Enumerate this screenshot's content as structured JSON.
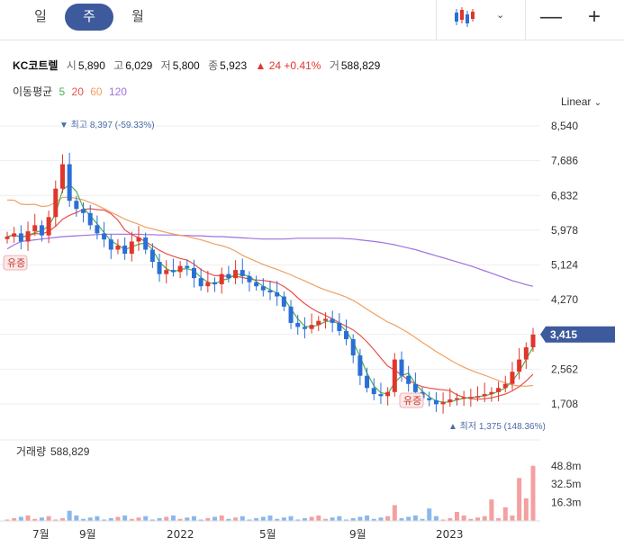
{
  "tabs": [
    {
      "label": "일",
      "active": false
    },
    {
      "label": "주",
      "active": true
    },
    {
      "label": "월",
      "active": false
    }
  ],
  "toolbar": {
    "chart_type_icon": "candlestick-icon",
    "dropdown_icon": "chevron-down-icon",
    "zoom_out": "—",
    "zoom_in": "+"
  },
  "quote": {
    "name": "KC코트렐",
    "open_label": "시",
    "open": "5,890",
    "high_label": "고",
    "high": "6,029",
    "low_label": "저",
    "low": "5,800",
    "close_label": "종",
    "close": "5,923",
    "change_arrow": "▲",
    "change": "24",
    "change_pct": "+0.41%",
    "volume_label": "거",
    "volume": "588,829"
  },
  "ma_legend": {
    "label": "이동평균",
    "items": [
      {
        "period": "5",
        "color": "#4caf50"
      },
      {
        "period": "20",
        "color": "#e8504a"
      },
      {
        "period": "60",
        "color": "#f0a060"
      },
      {
        "period": "120",
        "color": "#a070e0"
      }
    ]
  },
  "scale_mode": "Linear",
  "colors": {
    "up": "#e0362c",
    "down": "#2a6fd6",
    "accent": "#3d5a9c"
  },
  "chart_data": {
    "type": "candlestick",
    "y_ticks": [
      "8,540",
      "7,686",
      "6,832",
      "5,978",
      "5,124",
      "4,270",
      "2,562",
      "1,708"
    ],
    "y_tick_values": [
      8540,
      7686,
      6832,
      5978,
      5124,
      4270,
      2562,
      1708
    ],
    "ylim": [
      1450,
      8750
    ],
    "current_price_label": "3,415",
    "current_price": 3415,
    "high_annotation": "▼ 최고 8,397 (-59.33%)",
    "low_annotation": "▲ 최저 1,375 (148.36%)",
    "badges": [
      "유증",
      "유증"
    ],
    "x_labels": [
      "7월",
      "9월",
      "2022",
      "5월",
      "9월",
      "2023"
    ],
    "volume_panel": {
      "title": "거래량",
      "value": "588,829",
      "y_ticks": [
        "48.8m",
        "32.5m",
        "16.3m"
      ],
      "y_tick_values": [
        48.8,
        32.5,
        16.3
      ]
    },
    "close_series": [
      5820,
      5900,
      5700,
      5950,
      6100,
      5850,
      6300,
      7000,
      7600,
      6700,
      6500,
      6400,
      6100,
      5900,
      5750,
      5500,
      5600,
      5400,
      5700,
      5800,
      5500,
      5200,
      4900,
      5000,
      4950,
      5100,
      5050,
      4800,
      4600,
      4700,
      4650,
      4900,
      4800,
      5000,
      4850,
      4700,
      4600,
      4500,
      4450,
      4350,
      4100,
      3700,
      3600,
      3550,
      3650,
      3750,
      3800,
      3700,
      3500,
      3300,
      2900,
      2400,
      2100,
      1950,
      1900,
      2000,
      2800,
      2400,
      2200,
      2000,
      1850,
      1800,
      1700,
      1750,
      1820,
      1850,
      1870,
      1880,
      1900,
      1950,
      2000,
      2100,
      2200,
      2500,
      2800,
      3100,
      3415
    ]
  }
}
